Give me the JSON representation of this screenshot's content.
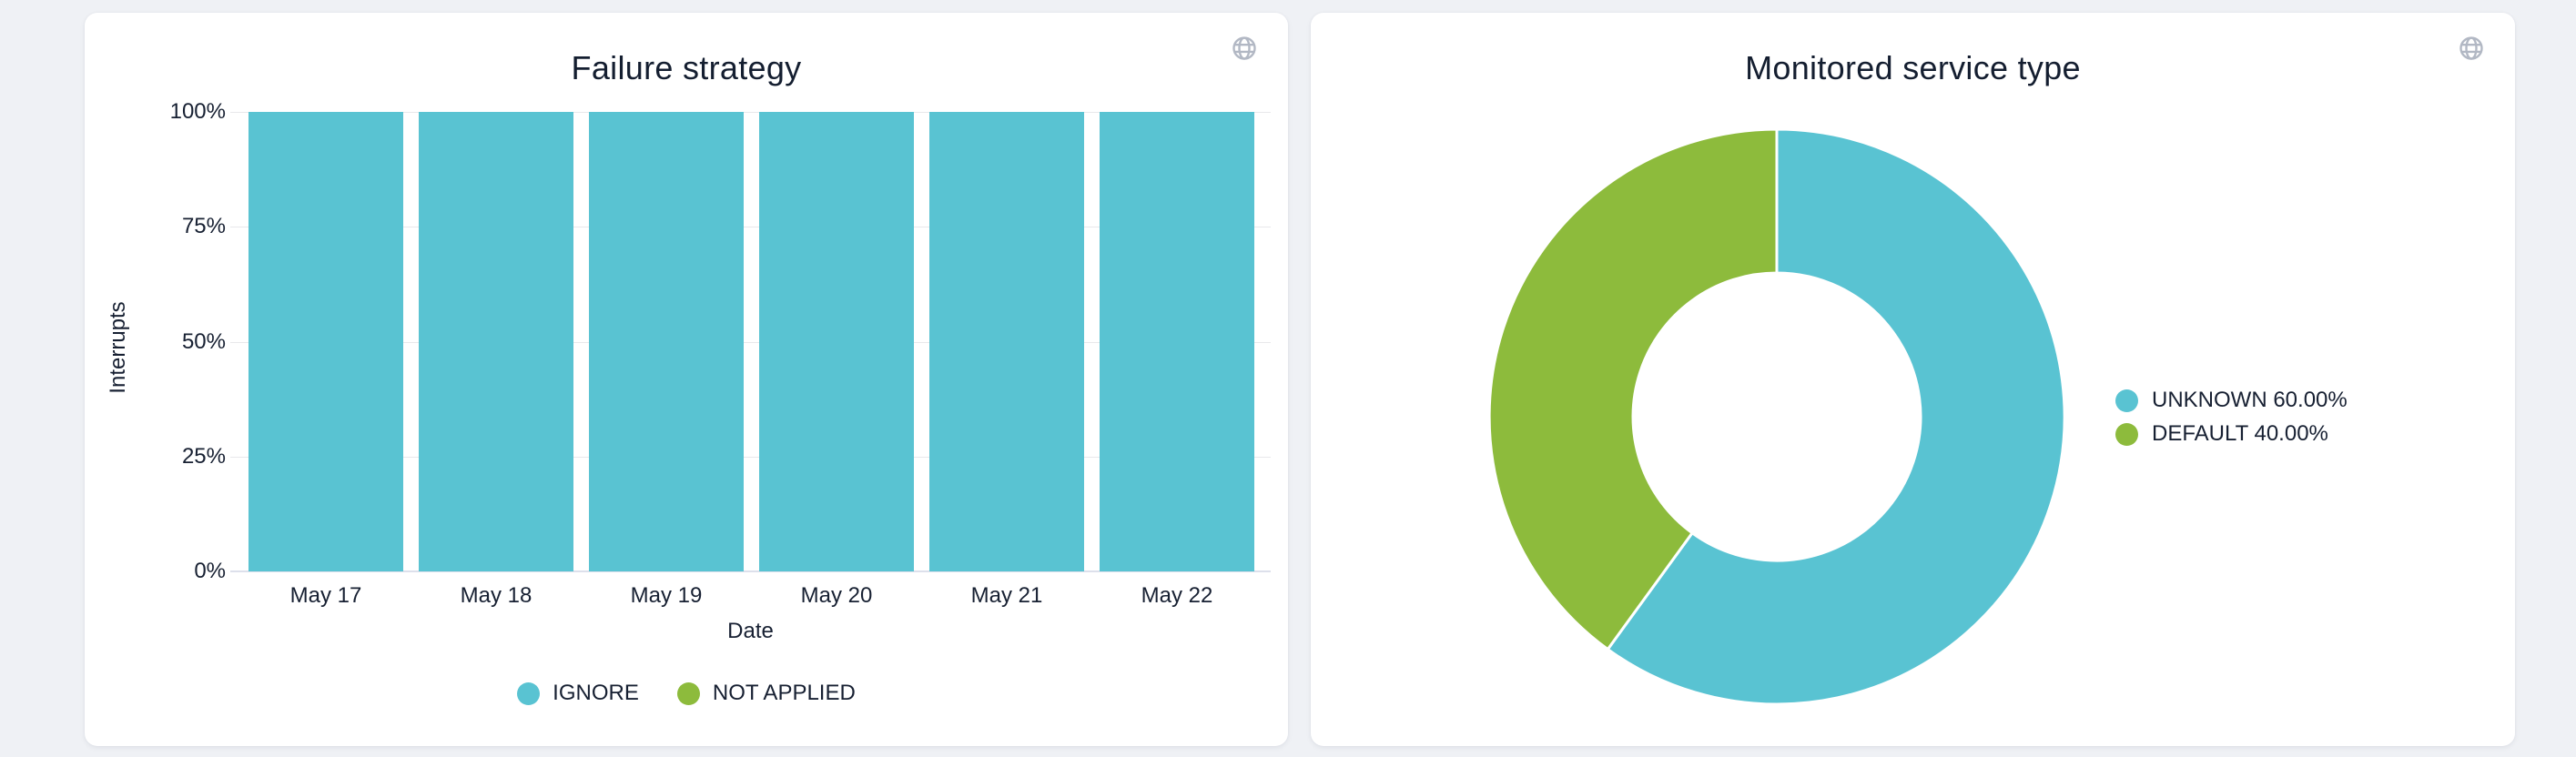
{
  "ui": {
    "background_color": "#eff1f5",
    "card_color": "#ffffff",
    "text_color": "#172032",
    "grid_color": "#e8e8eb",
    "axis_line_color": "#dde0eb",
    "globe_icon_color": "#b2b8c4",
    "globe_icon": "globe"
  },
  "chart_data": [
    {
      "type": "bar",
      "title": "Failure strategy",
      "xlabel": "Date",
      "ylabel": "Interrupts",
      "ylim": [
        0,
        100
      ],
      "grid": true,
      "legend_position": "bottom",
      "yticks": [
        {
          "label": "0%",
          "pct": 0
        },
        {
          "label": "25%",
          "pct": 25
        },
        {
          "label": "50%",
          "pct": 50
        },
        {
          "label": "75%",
          "pct": 75
        },
        {
          "label": "100%",
          "pct": 100
        }
      ],
      "categories": [
        "May 17",
        "May 18",
        "May 19",
        "May 20",
        "May 21",
        "May 22"
      ],
      "series": [
        {
          "name": "IGNORE",
          "color": "#59C3D2",
          "values": [
            100,
            100,
            100,
            100,
            100,
            100
          ]
        },
        {
          "name": "NOT APPLIED",
          "color": "#8DBB3C",
          "values": [
            0,
            0,
            0,
            0,
            0,
            0
          ]
        }
      ]
    },
    {
      "type": "pie",
      "title": "Monitored service type",
      "legend_position": "right",
      "donut": true,
      "slices": [
        {
          "name": "UNKNOWN",
          "value": 60.0,
          "label": "UNKNOWN 60.00%",
          "color": "#59C3D2"
        },
        {
          "name": "DEFAULT",
          "value": 40.0,
          "label": "DEFAULT 40.00%",
          "color": "#8DBB3C"
        }
      ]
    }
  ]
}
